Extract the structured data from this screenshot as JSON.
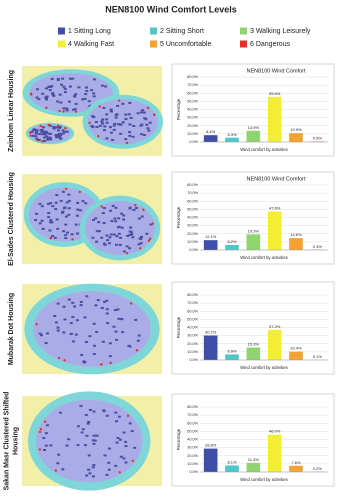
{
  "title": "NEN8100 Wind Comfort Levels",
  "legend": [
    {
      "name": "1 Sitting Long",
      "color": "#3f4fa8"
    },
    {
      "name": "2 Sitting Short",
      "color": "#4fc6c8"
    },
    {
      "name": "3 Walking Leisurely",
      "color": "#8fd46e"
    },
    {
      "name": "4 Walking Fast",
      "color": "#f3ee34"
    },
    {
      "name": "5 Uncomfortable",
      "color": "#f4a232"
    },
    {
      "name": "6 Dangerous",
      "color": "#e3302a"
    }
  ],
  "chart_data": [
    {
      "type": "bar",
      "panel_label": [
        "Zeinhom Linear Housing"
      ],
      "title": "NEN8100 Wind Comfort",
      "ylabel": "Percentage",
      "xlabel": "Wind comfort by activities",
      "values": [
        8.4,
        5.3,
        13.9,
        55.6,
        10.9,
        0.5
      ],
      "value_labels": [
        "8.4%",
        "5.3%",
        "13.9%",
        "55.6%",
        "10.9%",
        "0.5%"
      ],
      "ylim": [
        0,
        80
      ],
      "yticks": [
        {
          "value": 0,
          "label": "0.0%"
        },
        {
          "value": 10,
          "label": "10.0%"
        },
        {
          "value": 20,
          "label": "20.0%"
        },
        {
          "value": 30,
          "label": "30.0%"
        },
        {
          "value": 40,
          "label": "40.0%"
        },
        {
          "value": 50,
          "label": "50.0%"
        },
        {
          "value": 60,
          "label": "60.0%"
        },
        {
          "value": 70,
          "label": "70.0%"
        },
        {
          "value": 80,
          "label": "80.0%"
        }
      ]
    },
    {
      "type": "bar",
      "panel_label": [
        "El-Sades Clustered Housing"
      ],
      "title": "NEN8100 Wind Comfort",
      "ylabel": "Percentage",
      "xlabel": "Wind comfort by activities",
      "values": [
        12.1,
        6.2,
        19.3,
        47.6,
        14.6,
        0.3
      ],
      "value_labels": [
        "12.1%",
        "6.2%",
        "19.3%",
        "47.6%",
        "14.6%",
        "0.3%"
      ],
      "ylim": [
        0,
        80
      ],
      "yticks": [
        {
          "value": 0,
          "label": "0.0%"
        },
        {
          "value": 10,
          "label": "10.0%"
        },
        {
          "value": 20,
          "label": "20.0%"
        },
        {
          "value": 30,
          "label": "30.0%"
        },
        {
          "value": 40,
          "label": "40.0%"
        },
        {
          "value": 50,
          "label": "50.0%"
        },
        {
          "value": 60,
          "label": "60.0%"
        },
        {
          "value": 70,
          "label": "70.0%"
        },
        {
          "value": 80,
          "label": "80.0%"
        }
      ]
    },
    {
      "type": "bar",
      "panel_label": [
        "Mubarak Dot Housing"
      ],
      "ylabel": "Percentage",
      "xlabel": "Wind comfort by activities",
      "values": [
        30.2,
        6.9,
        15.3,
        37.2,
        10.4,
        0.1
      ],
      "value_labels": [
        "30.2%",
        "6.9%",
        "15.3%",
        "37.2%",
        "10.4%",
        "0.1%"
      ],
      "ylim": [
        0,
        80
      ],
      "yticks": [
        {
          "value": 0,
          "label": "0.0%"
        },
        {
          "value": 10,
          "label": "10.0%"
        },
        {
          "value": 20,
          "label": "20.0%"
        },
        {
          "value": 30,
          "label": "30.0%"
        },
        {
          "value": 40,
          "label": "40.0%"
        },
        {
          "value": 50,
          "label": "50.0%"
        },
        {
          "value": 60,
          "label": "60.0%"
        },
        {
          "value": 70,
          "label": "70.0%"
        },
        {
          "value": 80,
          "label": "80.0%"
        }
      ]
    },
    {
      "type": "bar",
      "panel_label": [
        "Sakan Masr Clustered Shifted",
        "Housing"
      ],
      "ylabel": "Percentage",
      "xlabel": "Wind comfort by activities",
      "values": [
        28.8,
        8.1,
        11.3,
        46.0,
        7.6,
        0.2
      ],
      "value_labels": [
        "28.8%",
        "8.1%",
        "11.3%",
        "46.0%",
        "7.6%",
        "0.2%"
      ],
      "ylim": [
        0,
        80
      ],
      "yticks": [
        {
          "value": 0,
          "label": "0.0%"
        },
        {
          "value": 10,
          "label": "10.0%"
        },
        {
          "value": 20,
          "label": "20.0%"
        },
        {
          "value": 30,
          "label": "30.0%"
        },
        {
          "value": 40,
          "label": "40.0%"
        },
        {
          "value": 50,
          "label": "50.0%"
        },
        {
          "value": 60,
          "label": "60.0%"
        },
        {
          "value": 70,
          "label": "70.0%"
        },
        {
          "value": 80,
          "label": "80.0%"
        }
      ]
    }
  ]
}
